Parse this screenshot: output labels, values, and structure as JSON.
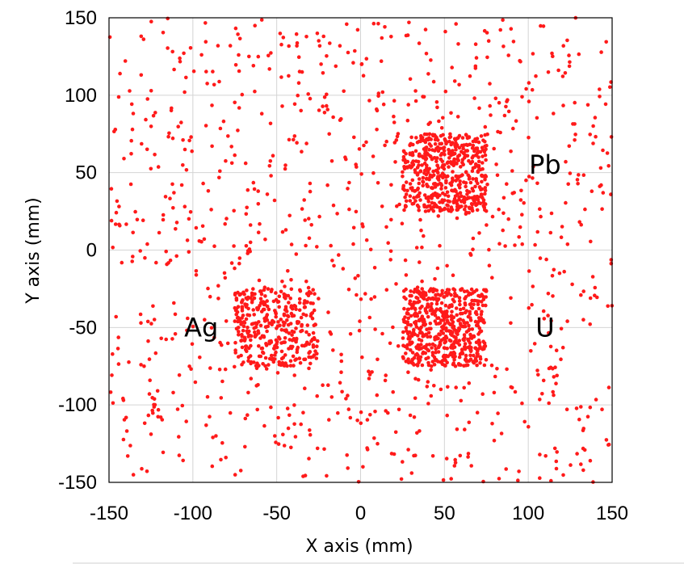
{
  "colors": {
    "points": "#ff1a1a",
    "grid": "#d4d4d4",
    "frame": "#000000"
  },
  "chart_data": {
    "type": "scatter",
    "title": "",
    "xlabel": "X axis (mm)",
    "ylabel": "Y axis (mm)",
    "xlim": [
      -150,
      150
    ],
    "ylim": [
      -150,
      150
    ],
    "xticks": [
      "-150",
      "-100",
      "-50",
      "0",
      "50",
      "100",
      "150"
    ],
    "yticks": [
      "150",
      "100",
      "50",
      "0",
      "-50",
      "-100",
      "-150"
    ],
    "grid": true,
    "annotations": [
      {
        "text": "Pb",
        "x": 110,
        "y": 55
      },
      {
        "text": "Ag",
        "x": -95,
        "y": -50
      },
      {
        "text": "U",
        "x": 110,
        "y": -50
      }
    ],
    "point_count_approx": 2200,
    "clusters": [
      {
        "label": "Pb",
        "x_range": [
          25,
          75
        ],
        "y_range": [
          25,
          75
        ],
        "center": [
          50,
          50
        ],
        "count": 500
      },
      {
        "label": "U",
        "x_range": [
          25,
          75
        ],
        "y_range": [
          -75,
          -25
        ],
        "center": [
          50,
          -50
        ],
        "count": 520
      },
      {
        "label": "Ag",
        "x_range": [
          -75,
          -25
        ],
        "y_range": [
          -75,
          -25
        ],
        "center": [
          -50,
          -50
        ],
        "count": 340
      },
      {
        "label": "background",
        "x_range": [
          -150,
          150
        ],
        "y_range": [
          -150,
          150
        ],
        "center": [
          0,
          0
        ],
        "count": 980
      }
    ]
  }
}
